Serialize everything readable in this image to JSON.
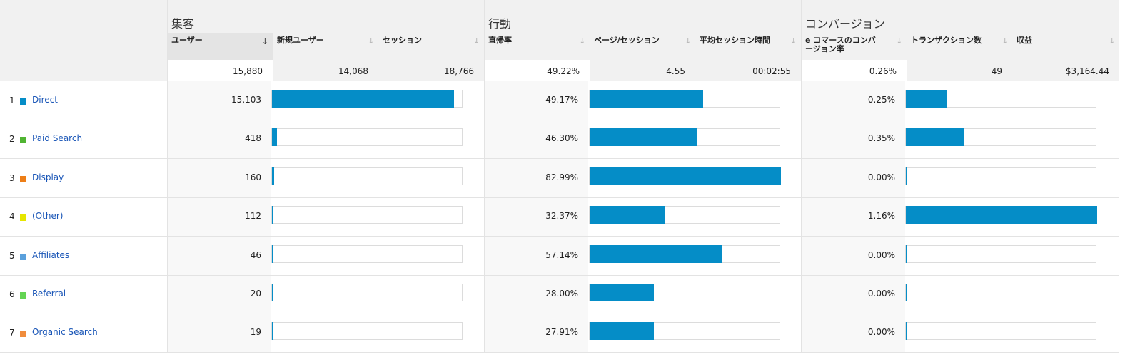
{
  "groups": {
    "acquisition": "集客",
    "behavior": "行動",
    "conversion": "コンバージョン"
  },
  "columns": {
    "users": "ユーザー",
    "new_users": "新規ユーザー",
    "sessions": "セッション",
    "bounce_rate": "直帰率",
    "pages_per_session": "ページ/セッション",
    "avg_session_duration": "平均セッション時間",
    "ecommerce_conv_rate_line1": "e コマースのコンバ",
    "ecommerce_conv_rate_line2": "ージョン率",
    "transactions": "トランザクション数",
    "revenue": "収益"
  },
  "totals": {
    "users": "15,880",
    "new_users": "14,068",
    "sessions": "18,766",
    "bounce_rate": "49.22%",
    "pages_per_session": "4.55",
    "avg_session_duration": "00:02:55",
    "ecommerce_conv_rate": "0.26%",
    "transactions": "49",
    "revenue": "$3,164.44"
  },
  "rows": [
    {
      "rank": "1",
      "channel": "Direct",
      "color": "#058dc7",
      "users": "15,103",
      "bounce_rate": "49.17%",
      "conv_rate": "0.25%",
      "users_frac": 0.951,
      "bounce_frac": 0.593,
      "conv_frac": 0.216
    },
    {
      "rank": "2",
      "channel": "Paid Search",
      "color": "#50b432",
      "users": "418",
      "bounce_rate": "46.30%",
      "conv_rate": "0.35%",
      "users_frac": 0.026,
      "bounce_frac": 0.558,
      "conv_frac": 0.302
    },
    {
      "rank": "3",
      "channel": "Display",
      "color": "#ed7e17",
      "users": "160",
      "bounce_rate": "82.99%",
      "conv_rate": "0.00%",
      "users_frac": 0.01,
      "bounce_frac": 1.0,
      "conv_frac": 0
    },
    {
      "rank": "4",
      "channel": "(Other)",
      "color": "#e6e600",
      "users": "112",
      "bounce_rate": "32.37%",
      "conv_rate": "1.16%",
      "users_frac": 0.007,
      "bounce_frac": 0.39,
      "conv_frac": 1.0
    },
    {
      "rank": "5",
      "channel": "Affiliates",
      "color": "#5aa0dc",
      "users": "46",
      "bounce_rate": "57.14%",
      "conv_rate": "0.00%",
      "users_frac": 0.003,
      "bounce_frac": 0.689,
      "conv_frac": 0
    },
    {
      "rank": "6",
      "channel": "Referral",
      "color": "#64d453",
      "users": "20",
      "bounce_rate": "28.00%",
      "conv_rate": "0.00%",
      "users_frac": 0.001,
      "bounce_frac": 0.337,
      "conv_frac": 0
    },
    {
      "rank": "7",
      "channel": "Organic Search",
      "color": "#f08c3c",
      "users": "19",
      "bounce_rate": "27.91%",
      "conv_rate": "0.00%",
      "users_frac": 0.001,
      "bounce_frac": 0.336,
      "conv_frac": 0
    }
  ],
  "colors": {
    "bar": "#058dc7",
    "link": "#1a56b7"
  }
}
